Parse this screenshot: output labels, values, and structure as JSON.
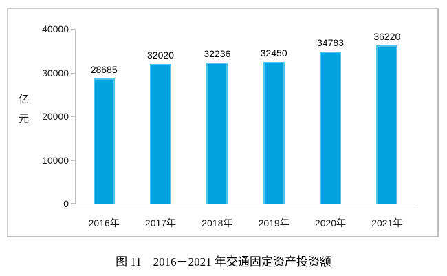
{
  "chart_data": {
    "type": "bar",
    "title": "图 11　2016－2021 年交通固定资产投资额",
    "ylabel": "亿元",
    "categories": [
      "2016年",
      "2017年",
      "2018年",
      "2019年",
      "2020年",
      "2021年"
    ],
    "values": [
      28685,
      32020,
      32236,
      32450,
      34783,
      36220
    ],
    "value_labels": [
      "28685",
      "32020",
      "32236",
      "32450",
      "34783",
      "36220"
    ],
    "ylim": [
      0,
      40000
    ],
    "ytick_labels": [
      "40000",
      "30000",
      "20000",
      "10000",
      "0"
    ],
    "grid": false,
    "legend_position": "none",
    "bar_color": "#00A3DE",
    "bar_edge_color": "#54C2EA",
    "axis_color": "#BFBFBF"
  }
}
